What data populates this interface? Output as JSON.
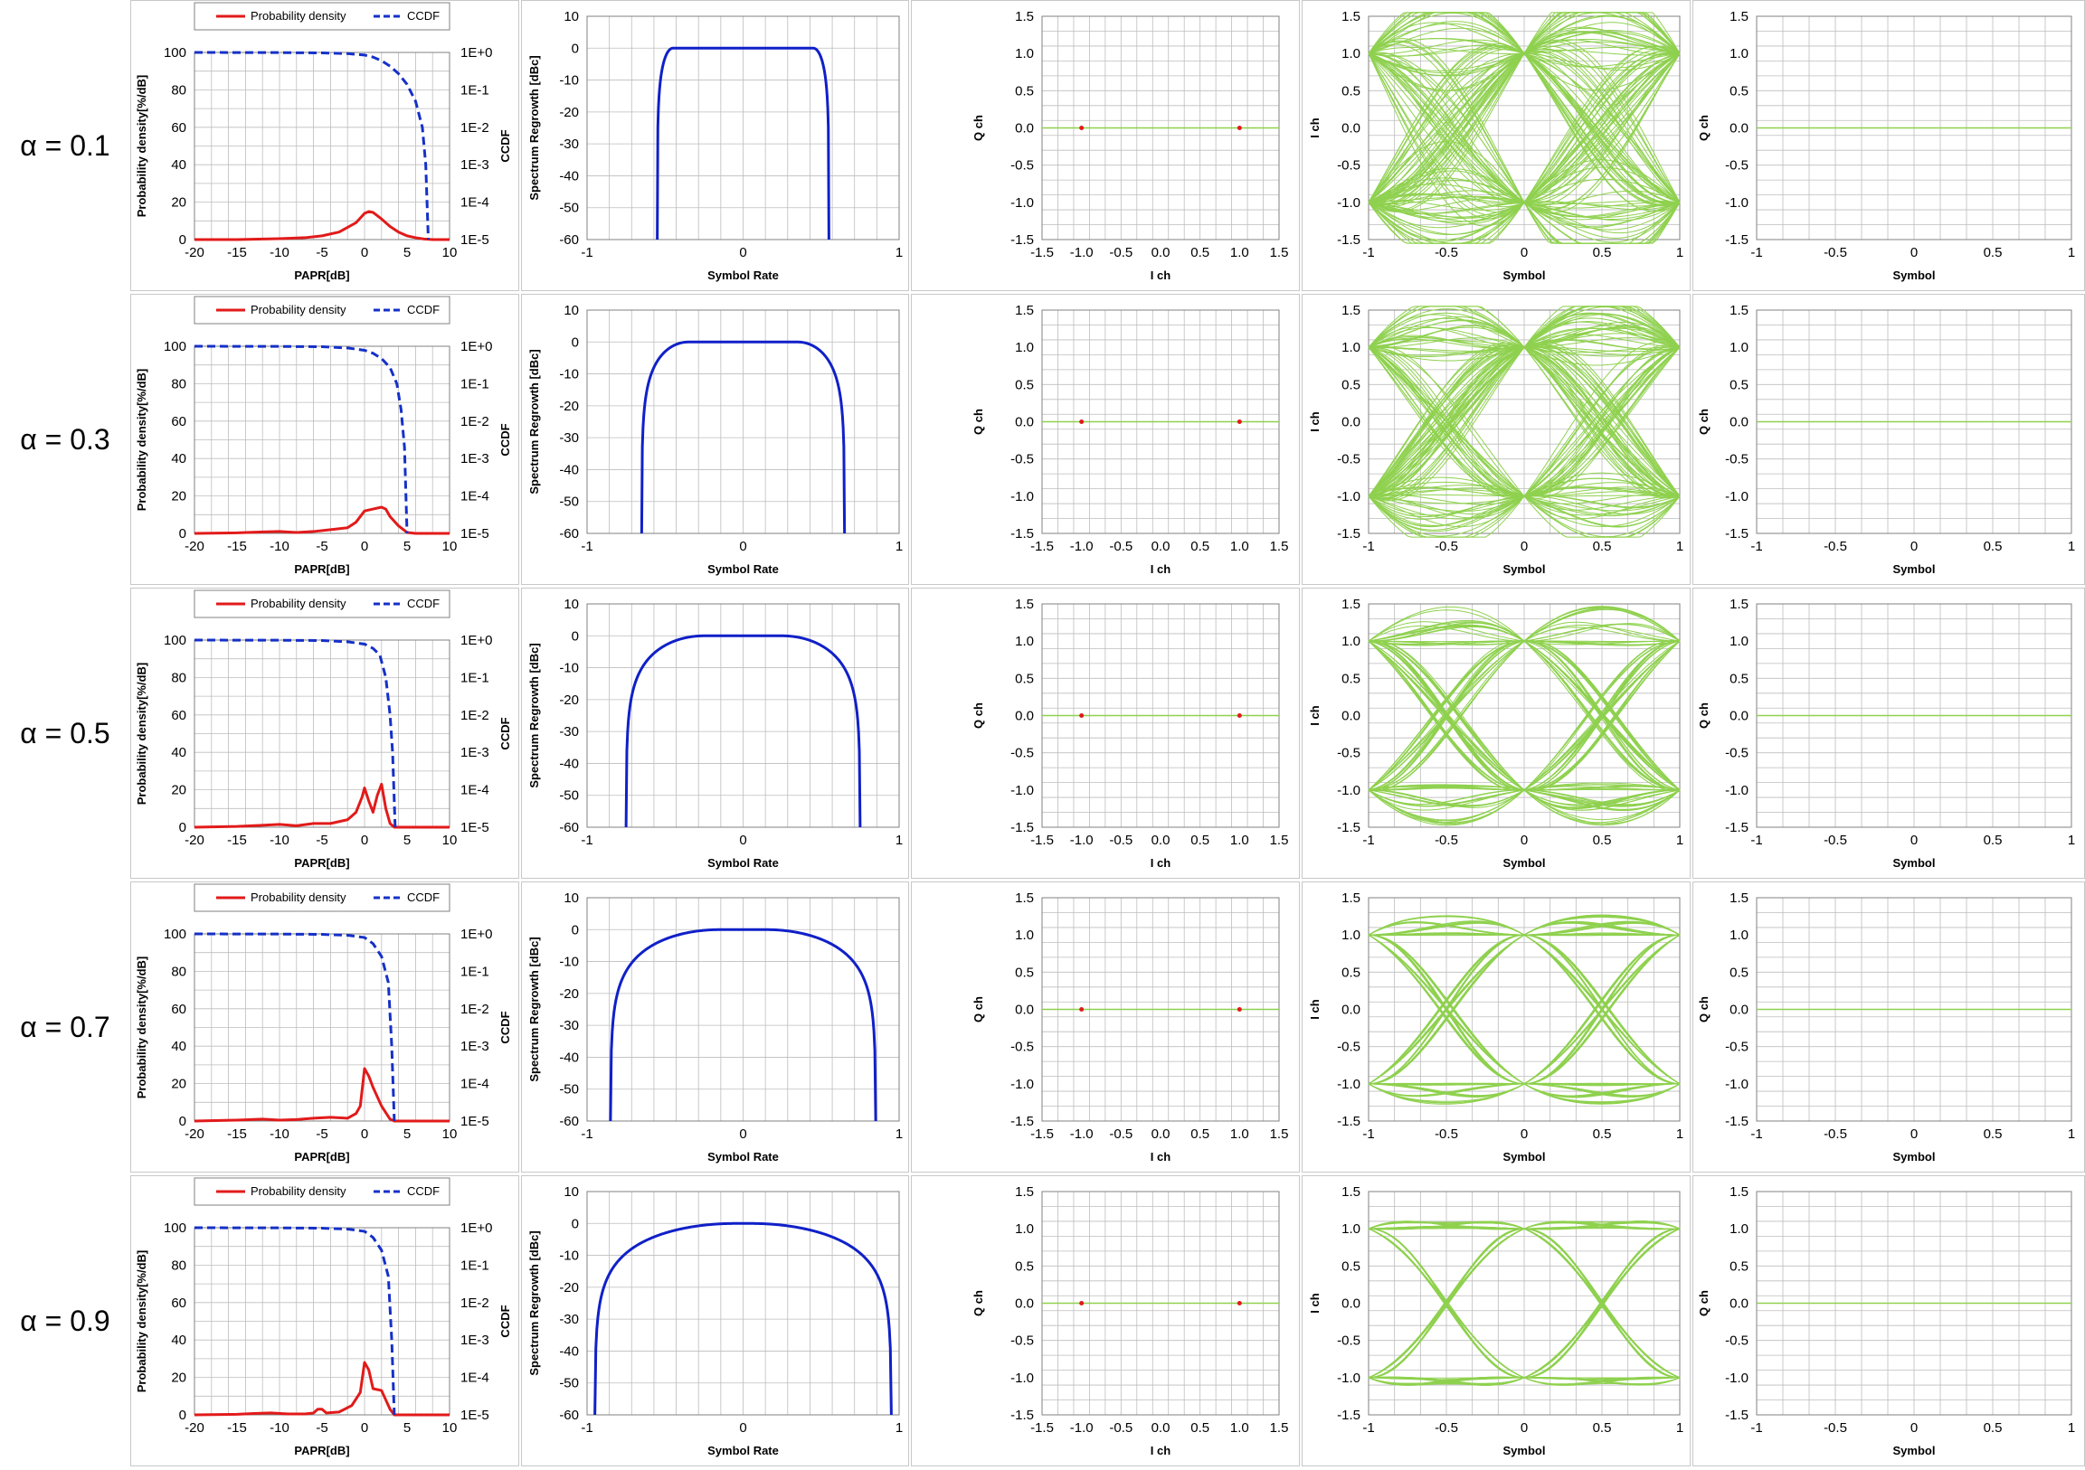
{
  "rows": [
    {
      "label": "α = 0.1",
      "alpha": 0.1
    },
    {
      "label": "α = 0.3",
      "alpha": 0.3
    },
    {
      "label": "α = 0.5",
      "alpha": 0.5
    },
    {
      "label": "α = 0.7",
      "alpha": 0.7
    },
    {
      "label": "α = 0.9",
      "alpha": 0.9
    }
  ],
  "colors": {
    "pdf": "#e21a1a",
    "ccdf": "#1530c8",
    "spectrum": "#1020c8",
    "eye": "#8fd14f",
    "constellation_point": "#e21a1a",
    "grid": "#bdbdbd",
    "frame": "#808080"
  },
  "chart_data": [
    {
      "type": "line",
      "panel": "papr",
      "xlabel": "PAPR[dB]",
      "ylabel": "Probability density[%/dB]",
      "ylabel2": "CCDF",
      "xlim": [
        -20,
        10
      ],
      "ylim": [
        0,
        100
      ],
      "xticks": [
        "-20",
        "-15",
        "-10",
        "-5",
        "0",
        "5",
        "10"
      ],
      "yticks": [
        "0",
        "20",
        "40",
        "60",
        "80",
        "100"
      ],
      "y2ticks": [
        "1E-5",
        "1E-4",
        "1E-3",
        "1E-2",
        "1E-1",
        "1E+0"
      ],
      "legend": [
        "Probability density",
        "CCDF"
      ],
      "legend_position": "top",
      "grid": true,
      "series_by_row": [
        {
          "pdf": [
            [
              -20,
              0
            ],
            [
              -15,
              0
            ],
            [
              -10,
              0.5
            ],
            [
              -7,
              1
            ],
            [
              -5,
              2
            ],
            [
              -3,
              4
            ],
            [
              -1,
              9
            ],
            [
              0,
              14
            ],
            [
              0.5,
              15
            ],
            [
              1,
              14.5
            ],
            [
              2,
              11
            ],
            [
              3,
              7
            ],
            [
              4,
              4
            ],
            [
              5,
              2
            ],
            [
              6,
              1
            ],
            [
              7,
              0.3
            ],
            [
              8,
              0
            ],
            [
              10,
              0
            ]
          ],
          "ccdf": [
            [
              -20,
              1
            ],
            [
              -10,
              0.99
            ],
            [
              -5,
              0.97
            ],
            [
              -2,
              0.93
            ],
            [
              0,
              0.85
            ],
            [
              1,
              0.75
            ],
            [
              2,
              0.6
            ],
            [
              3,
              0.43
            ],
            [
              4,
              0.27
            ],
            [
              5,
              0.14
            ],
            [
              6,
              0.05
            ],
            [
              6.8,
              0.01
            ],
            [
              7.2,
              0.001
            ],
            [
              7.5,
              1e-05
            ]
          ]
        },
        {
          "pdf": [
            [
              -20,
              0
            ],
            [
              -15,
              0.3
            ],
            [
              -12,
              0.8
            ],
            [
              -10,
              1
            ],
            [
              -8,
              0.5
            ],
            [
              -6,
              1
            ],
            [
              -4,
              2
            ],
            [
              -2,
              3
            ],
            [
              -1,
              6
            ],
            [
              0,
              12
            ],
            [
              1,
              13
            ],
            [
              2,
              14
            ],
            [
              2.5,
              13
            ],
            [
              3,
              9
            ],
            [
              4,
              4
            ],
            [
              5,
              0.5
            ],
            [
              6,
              0
            ],
            [
              10,
              0
            ]
          ],
          "ccdf": [
            [
              -20,
              1
            ],
            [
              -10,
              0.99
            ],
            [
              -5,
              0.97
            ],
            [
              -2,
              0.9
            ],
            [
              0,
              0.78
            ],
            [
              1,
              0.65
            ],
            [
              2,
              0.47
            ],
            [
              3,
              0.27
            ],
            [
              3.8,
              0.1
            ],
            [
              4.3,
              0.02
            ],
            [
              4.7,
              0.002
            ],
            [
              5,
              1e-05
            ]
          ]
        },
        {
          "pdf": [
            [
              -20,
              0
            ],
            [
              -15,
              0.4
            ],
            [
              -12,
              1
            ],
            [
              -10,
              1.5
            ],
            [
              -8,
              0.8
            ],
            [
              -6,
              2
            ],
            [
              -4,
              2
            ],
            [
              -2,
              4
            ],
            [
              -1,
              8
            ],
            [
              -0.3,
              16
            ],
            [
              0,
              21
            ],
            [
              0.5,
              14
            ],
            [
              1,
              8
            ],
            [
              1.5,
              17
            ],
            [
              2,
              23
            ],
            [
              2.5,
              10
            ],
            [
              3,
              2
            ],
            [
              3.5,
              0
            ],
            [
              10,
              0
            ]
          ],
          "ccdf": [
            [
              -20,
              1
            ],
            [
              -10,
              0.99
            ],
            [
              -5,
              0.97
            ],
            [
              -2,
              0.9
            ],
            [
              0,
              0.78
            ],
            [
              1,
              0.6
            ],
            [
              1.8,
              0.4
            ],
            [
              2.5,
              0.1
            ],
            [
              3,
              0.01
            ],
            [
              3.3,
              0.001
            ],
            [
              3.6,
              1e-05
            ]
          ]
        },
        {
          "pdf": [
            [
              -20,
              0
            ],
            [
              -15,
              0.5
            ],
            [
              -12,
              1
            ],
            [
              -10,
              0.5
            ],
            [
              -8,
              0.8
            ],
            [
              -6,
              1.5
            ],
            [
              -4,
              2
            ],
            [
              -2,
              1.5
            ],
            [
              -1,
              4
            ],
            [
              -0.5,
              8
            ],
            [
              0,
              28
            ],
            [
              0.5,
              24
            ],
            [
              1,
              18
            ],
            [
              2,
              8
            ],
            [
              3,
              1
            ],
            [
              3.5,
              0
            ],
            [
              10,
              0
            ]
          ],
          "ccdf": [
            [
              -20,
              1
            ],
            [
              -10,
              0.99
            ],
            [
              -5,
              0.97
            ],
            [
              -2,
              0.92
            ],
            [
              0,
              0.8
            ],
            [
              1,
              0.55
            ],
            [
              2,
              0.25
            ],
            [
              2.8,
              0.05
            ],
            [
              3.2,
              0.001
            ],
            [
              3.5,
              1e-05
            ]
          ]
        },
        {
          "pdf": [
            [
              -20,
              0
            ],
            [
              -15,
              0.3
            ],
            [
              -13,
              0.7
            ],
            [
              -11,
              1
            ],
            [
              -9,
              0.5
            ],
            [
              -7,
              0.5
            ],
            [
              -6,
              1
            ],
            [
              -5.5,
              3
            ],
            [
              -5,
              3
            ],
            [
              -4.5,
              1
            ],
            [
              -3,
              1.5
            ],
            [
              -1.5,
              5
            ],
            [
              -0.5,
              12
            ],
            [
              0,
              28
            ],
            [
              0.5,
              24
            ],
            [
              1,
              14
            ],
            [
              2,
              13
            ],
            [
              2.5,
              8
            ],
            [
              3,
              3
            ],
            [
              3.5,
              0
            ],
            [
              10,
              0
            ]
          ],
          "ccdf": [
            [
              -20,
              1
            ],
            [
              -10,
              0.99
            ],
            [
              -5,
              0.97
            ],
            [
              -2,
              0.92
            ],
            [
              0,
              0.8
            ],
            [
              1,
              0.55
            ],
            [
              2,
              0.25
            ],
            [
              2.8,
              0.05
            ],
            [
              3.2,
              0.001
            ],
            [
              3.5,
              1e-05
            ]
          ]
        }
      ]
    },
    {
      "type": "line",
      "panel": "spectrum",
      "xlabel": "Symbol Rate",
      "ylabel": "Spectrum Regrowth [dBc]",
      "xlim": [
        -1,
        1
      ],
      "ylim": [
        -60,
        10
      ],
      "xticks": [
        "-1",
        "0",
        "1"
      ],
      "yticks": [
        "-60",
        "-50",
        "-40",
        "-30",
        "-20",
        "-10",
        "0",
        "10"
      ],
      "grid": true,
      "series_by_row": [
        {
          "rolloff": 0.1,
          "edge_level_dBc": -60
        },
        {
          "rolloff": 0.3,
          "edge_level_dBc": -60
        },
        {
          "rolloff": 0.5,
          "edge_level_dBc": -60
        },
        {
          "rolloff": 0.7,
          "edge_level_dBc": -60
        },
        {
          "rolloff": 0.9,
          "edge_level_dBc": -60
        }
      ]
    },
    {
      "type": "scatter",
      "panel": "constellation",
      "xlabel": "I ch",
      "ylabel": "Q ch",
      "xlim": [
        -1.5,
        1.5
      ],
      "ylim": [
        -1.5,
        1.5
      ],
      "xticks": [
        "-1.5",
        "-1.0",
        "-0.5",
        "0.0",
        "0.5",
        "1.0",
        "1.5"
      ],
      "yticks": [
        "-1.5",
        "-1.0",
        "-0.5",
        "0.0",
        "0.5",
        "1.0",
        "1.5"
      ],
      "grid": true,
      "points": [
        [
          -1,
          0
        ],
        [
          1,
          0
        ]
      ],
      "trajectory": [
        [
          -1,
          0
        ],
        [
          1,
          0
        ]
      ]
    },
    {
      "type": "line",
      "panel": "eye_i",
      "xlabel": "Symbol",
      "ylabel": "I ch",
      "xlim": [
        -1,
        1
      ],
      "ylim": [
        -1.5,
        1.5
      ],
      "xticks": [
        "-1",
        "-0.5",
        "0",
        "0.5",
        "1"
      ],
      "yticks": [
        "-1.5",
        "-1.0",
        "-0.5",
        "0.0",
        "0.5",
        "1.0",
        "1.5"
      ],
      "grid": true,
      "series_by_row": [
        {
          "rolloff": 0.1
        },
        {
          "rolloff": 0.3
        },
        {
          "rolloff": 0.5
        },
        {
          "rolloff": 0.7
        },
        {
          "rolloff": 0.9
        }
      ]
    },
    {
      "type": "line",
      "panel": "eye_q",
      "xlabel": "Symbol",
      "ylabel": "Q ch",
      "xlim": [
        -1,
        1
      ],
      "ylim": [
        -1.5,
        1.5
      ],
      "xticks": [
        "-1",
        "-0.5",
        "0",
        "0.5",
        "1"
      ],
      "yticks": [
        "-1.5",
        "-1.0",
        "-0.5",
        "0.0",
        "0.5",
        "1.0",
        "1.5"
      ],
      "grid": true,
      "values": [
        [
          -1,
          0
        ],
        [
          1,
          0
        ]
      ]
    }
  ]
}
